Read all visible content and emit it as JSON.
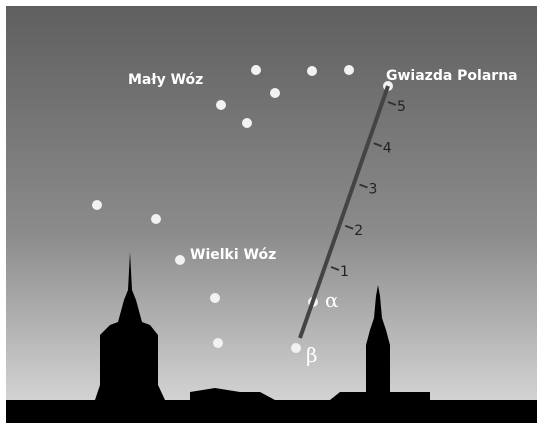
{
  "labels": {
    "little_dipper": "Mały Wóz",
    "polaris": "Gwiazda Polarna",
    "big_dipper": "Wielki Wóz",
    "alpha": "α",
    "beta": "β"
  },
  "scale": [
    1,
    2,
    3,
    4,
    5
  ]
}
